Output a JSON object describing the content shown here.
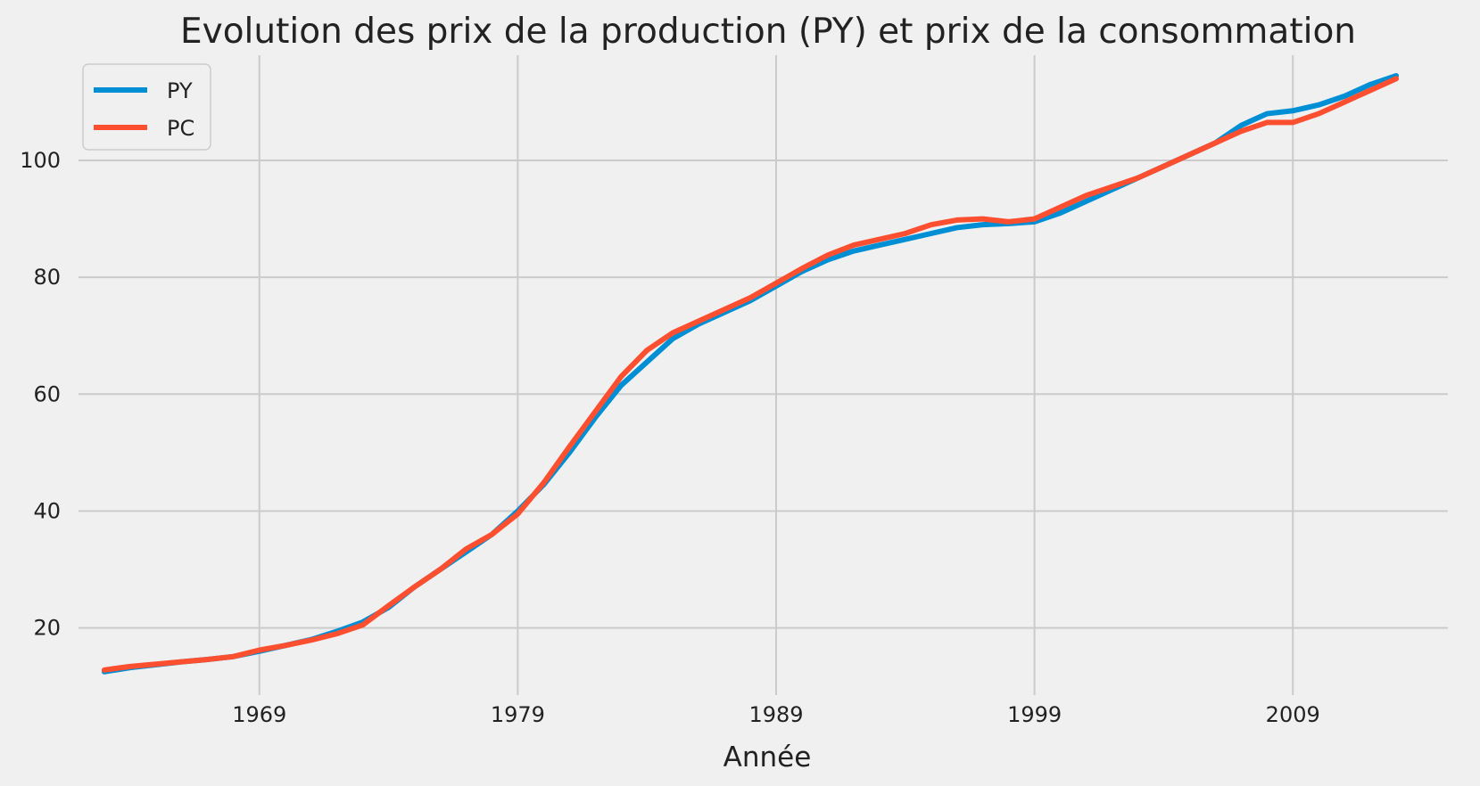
{
  "chart_data": {
    "type": "line",
    "title": "Evolution des prix de la production (PY) et prix de la consommation",
    "xlabel": "Année",
    "ylabel": "",
    "xlim": [
      1962,
      2015
    ],
    "ylim": [
      8.5,
      118
    ],
    "xticks": [
      1969,
      1979,
      1989,
      1999,
      2009
    ],
    "yticks": [
      20,
      40,
      60,
      80,
      100
    ],
    "grid": true,
    "legend_position": "top-left",
    "series": [
      {
        "name": "PY",
        "color": "#008fd5",
        "x": [
          1963,
          1964,
          1965,
          1966,
          1967,
          1968,
          1969,
          1970,
          1971,
          1972,
          1973,
          1974,
          1975,
          1976,
          1977,
          1978,
          1979,
          1980,
          1981,
          1982,
          1983,
          1984,
          1985,
          1986,
          1987,
          1988,
          1989,
          1990,
          1991,
          1992,
          1993,
          1994,
          1995,
          1996,
          1997,
          1998,
          1999,
          2000,
          2001,
          2002,
          2003,
          2004,
          2005,
          2006,
          2007,
          2008,
          2009,
          2010,
          2011,
          2012,
          2013
        ],
        "y": [
          12.5,
          13.2,
          13.7,
          14.2,
          14.6,
          15.1,
          16.0,
          17.0,
          18.0,
          19.4,
          21.0,
          23.5,
          27.0,
          30.0,
          33.0,
          36.0,
          40.0,
          44.5,
          50.0,
          56.0,
          61.5,
          65.5,
          69.5,
          72.0,
          74.0,
          76.0,
          78.5,
          81.0,
          83.0,
          84.5,
          85.5,
          86.5,
          87.5,
          88.5,
          89.0,
          89.2,
          89.5,
          91.0,
          93.0,
          95.0,
          97.0,
          99.0,
          101.0,
          103.0,
          106.0,
          108.0,
          108.5,
          109.5,
          111.0,
          113.0,
          114.5
        ]
      },
      {
        "name": "PC",
        "color": "#fc4f30",
        "x": [
          1963,
          1964,
          1965,
          1966,
          1967,
          1968,
          1969,
          1970,
          1971,
          1972,
          1973,
          1974,
          1975,
          1976,
          1977,
          1978,
          1979,
          1980,
          1981,
          1982,
          1983,
          1984,
          1985,
          1986,
          1987,
          1988,
          1989,
          1990,
          1991,
          1992,
          1993,
          1994,
          1995,
          1996,
          1997,
          1998,
          1999,
          2000,
          2001,
          2002,
          2003,
          2004,
          2005,
          2006,
          2007,
          2008,
          2009,
          2010,
          2011,
          2012,
          2013
        ],
        "y": [
          12.8,
          13.4,
          13.8,
          14.2,
          14.6,
          15.1,
          16.2,
          17.0,
          17.9,
          19.0,
          20.5,
          23.8,
          27.0,
          30.0,
          33.5,
          36.0,
          39.5,
          44.8,
          51.0,
          57.0,
          63.0,
          67.5,
          70.5,
          72.5,
          74.5,
          76.5,
          79.0,
          81.5,
          83.8,
          85.5,
          86.5,
          87.5,
          89.0,
          89.8,
          90.0,
          89.5,
          90.0,
          92.0,
          94.0,
          95.5,
          97.0,
          99.0,
          101.0,
          103.0,
          105.0,
          106.5,
          106.5,
          108.0,
          110.0,
          112.0,
          114.0
        ]
      }
    ]
  }
}
